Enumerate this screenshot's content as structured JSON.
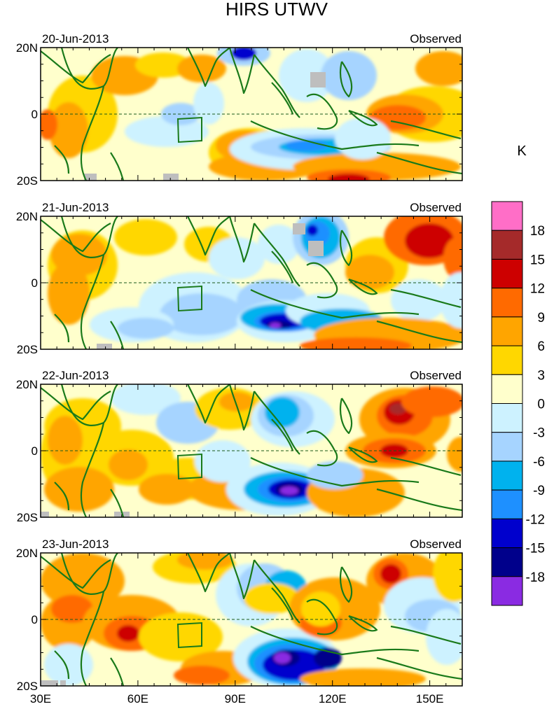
{
  "title": "HIRS UTWV",
  "unit": "K",
  "lat_labels": [
    "20N",
    "0",
    "20S"
  ],
  "lon_labels": [
    "30E",
    "60E",
    "90E",
    "120E",
    "150E"
  ],
  "panels": [
    {
      "date": "20-Jun-2013",
      "label": "Observed"
    },
    {
      "date": "21-Jun-2013",
      "label": "Observed"
    },
    {
      "date": "22-Jun-2013",
      "label": "Observed"
    },
    {
      "date": "23-Jun-2013",
      "label": "Observed"
    }
  ],
  "colorbar": {
    "levels": [
      "18",
      "15",
      "12",
      "9",
      "6",
      "3",
      "0",
      "-3",
      "-6",
      "-9",
      "-12",
      "-15",
      "-18"
    ],
    "colors_top_to_bottom": [
      "#ff6ec7",
      "#a52a2a",
      "#cd0000",
      "#ff6a00",
      "#ffa500",
      "#ffd700",
      "#ffffcc",
      "#cdf2ff",
      "#a6d4ff",
      "#00b2ee",
      "#1e90ff",
      "#0000cd",
      "#00008b",
      "#8a2be2"
    ]
  },
  "colors": {
    "coast": "#1a7a1a",
    "missing": "#bebebe",
    "frame": "#000000"
  }
}
